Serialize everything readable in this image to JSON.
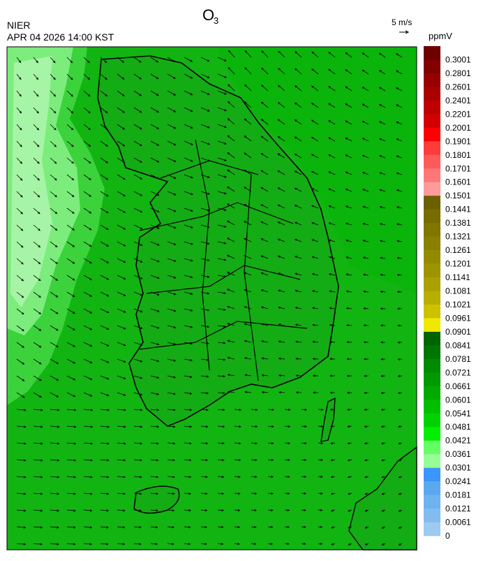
{
  "header": {
    "title_base": "O",
    "title_subscript": "3",
    "agency": "NIER",
    "datetime": "APR 04 2026 14:00 KST",
    "wind_reference": "5 m/s"
  },
  "colorbar": {
    "unit": "ppmV",
    "labels": [
      "0.3001",
      "0.2801",
      "0.2601",
      "0.2401",
      "0.2201",
      "0.2001",
      "0.1901",
      "0.1801",
      "0.1701",
      "0.1601",
      "0.1501",
      "0.1441",
      "0.1381",
      "0.1321",
      "0.1261",
      "0.1201",
      "0.1141",
      "0.1081",
      "0.1021",
      "0.0961",
      "0.0901",
      "0.0841",
      "0.0781",
      "0.0721",
      "0.0661",
      "0.0601",
      "0.0541",
      "0.0481",
      "0.0421",
      "0.0361",
      "0.0301",
      "0.0241",
      "0.0181",
      "0.0121",
      "0.0061",
      "0"
    ],
    "colors": [
      "#6e0000",
      "#820000",
      "#960000",
      "#aa0000",
      "#be0000",
      "#d20000",
      "#ff0000",
      "#ff3c3c",
      "#ff5a5a",
      "#ff7878",
      "#ff9a9a",
      "#6b6000",
      "#766c00",
      "#807600",
      "#8a8000",
      "#948a00",
      "#9e9400",
      "#aaa000",
      "#b8ae00",
      "#ccc200",
      "#f0e800",
      "#006400",
      "#007600",
      "#008a00",
      "#009a00",
      "#00aa00",
      "#00be00",
      "#00d200",
      "#00f000",
      "#64ff64",
      "#96ff96",
      "#3c96ff",
      "#5aa8f0",
      "#6eb2f0",
      "#82bcf0",
      "#9ccaf0"
    ]
  }
}
